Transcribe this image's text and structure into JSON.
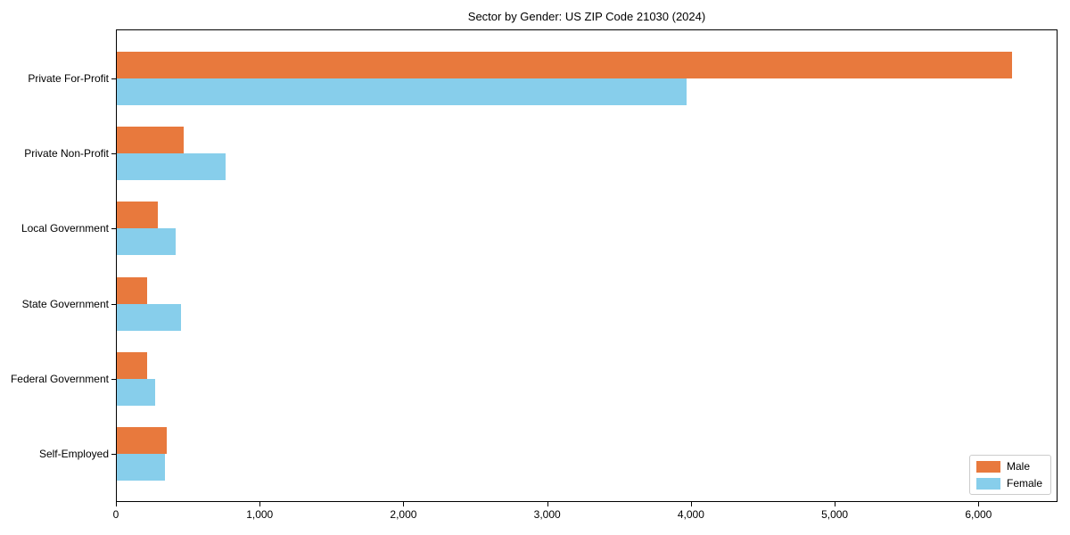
{
  "title": "Sector by Gender: US ZIP Code 21030 (2024)",
  "colors": {
    "male": "#e8793d",
    "female": "#87ceeb",
    "axis": "#000000",
    "legend_border": "#cccccc",
    "background": "#ffffff"
  },
  "chart_data": {
    "type": "bar",
    "orientation": "horizontal",
    "title": "Sector by Gender: US ZIP Code 21030 (2024)",
    "xlabel": "",
    "ylabel": "",
    "categories": [
      "Private For-Profit",
      "Private Non-Profit",
      "Local Government",
      "State Government",
      "Federal Government",
      "Self-Employed"
    ],
    "series": [
      {
        "name": "Male",
        "color": "#e8793d",
        "values": [
          6240,
          465,
          285,
          210,
          210,
          350
        ]
      },
      {
        "name": "Female",
        "color": "#87ceeb",
        "values": [
          3970,
          760,
          410,
          445,
          265,
          335
        ]
      }
    ],
    "xlim": [
      0,
      6550
    ],
    "x_ticks": [
      0,
      1000,
      2000,
      3000,
      4000,
      5000,
      6000
    ],
    "x_tick_labels": [
      "0",
      "1,000",
      "2,000",
      "3,000",
      "4,000",
      "5,000",
      "6,000"
    ],
    "grid": false,
    "legend": {
      "position": "lower right",
      "entries": [
        {
          "label": "Male",
          "color": "#e8793d"
        },
        {
          "label": "Female",
          "color": "#87ceeb"
        }
      ]
    }
  }
}
